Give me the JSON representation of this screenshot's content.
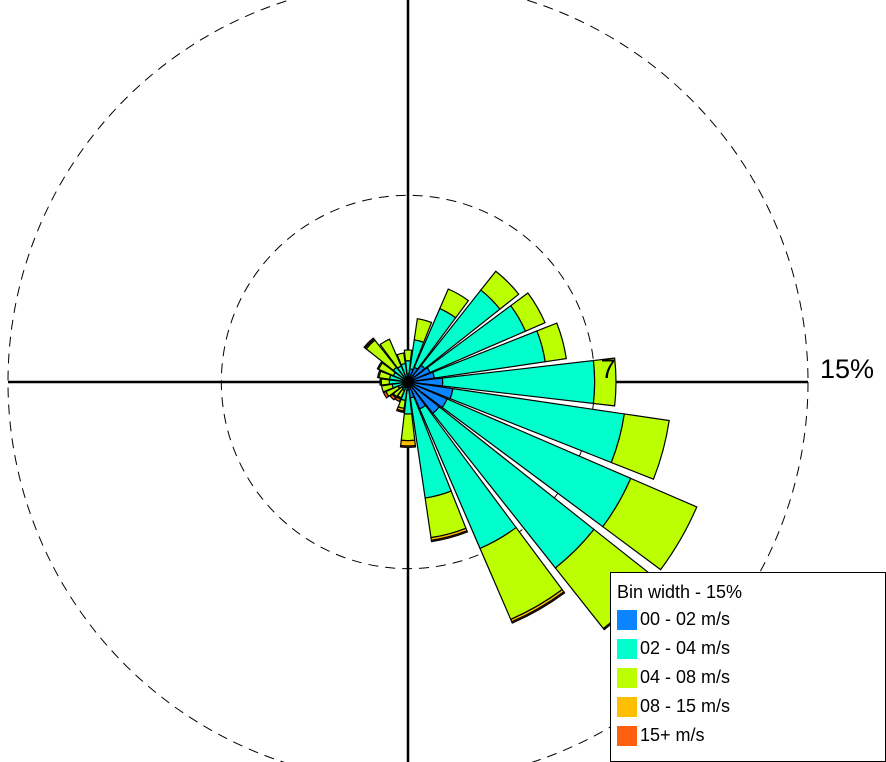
{
  "chart_data": {
    "type": "windrose",
    "ring_labels": [
      "7",
      "15%"
    ],
    "ring_values": [
      7,
      15
    ],
    "legend": {
      "title": "Bin width - 15%",
      "entries": [
        {
          "label": "00 - 02 m/s",
          "color": "#0a84ff"
        },
        {
          "label": "02 - 04 m/s",
          "color": "#00ffcc"
        },
        {
          "label": "04 - 08 m/s",
          "color": "#bbff00"
        },
        {
          "label": "08 - 15 m/s",
          "color": "#ffbf00"
        },
        {
          "label": "15+ m/s",
          "color": "#ff6010"
        }
      ]
    },
    "directions_deg": [
      0,
      15,
      30,
      45,
      60,
      75,
      90,
      105,
      120,
      135,
      150,
      165,
      180,
      195,
      210,
      225,
      240,
      255,
      270,
      285,
      300,
      315,
      330,
      345
    ],
    "series": [
      {
        "name": "00 - 02 m/s",
        "values": [
          0.3,
          0.5,
          0.6,
          0.8,
          0.9,
          1.0,
          1.3,
          1.7,
          1.6,
          1.5,
          1.1,
          0.6,
          0.3,
          0.2,
          0.15,
          0.1,
          0.1,
          0.1,
          0.1,
          0.1,
          0.1,
          0.1,
          0.15,
          0.2
        ]
      },
      {
        "name": "02 - 04 m/s",
        "values": [
          0.5,
          1.1,
          2.4,
          3.6,
          3.9,
          4.2,
          5.7,
          6.5,
          7.5,
          7.4,
          5.7,
          3.8,
          0.9,
          0.5,
          0.2,
          0.2,
          0.3,
          0.5,
          0.6,
          0.6,
          0.5,
          0.6,
          0.5,
          0.5
        ]
      },
      {
        "name": "04 - 08 m/s",
        "values": [
          0.4,
          0.8,
          0.8,
          0.9,
          0.8,
          0.8,
          0.8,
          1.7,
          2.7,
          2.9,
          2.9,
          1.5,
          1.0,
          0.3,
          0.3,
          0.4,
          0.5,
          0.4,
          0.3,
          0.4,
          0.6,
          1.3,
          1.1,
          0.4
        ]
      },
      {
        "name": "08 - 15 m/s",
        "values": [
          0,
          0,
          0,
          0,
          0,
          0,
          0,
          0,
          0,
          0.05,
          0.1,
          0.1,
          0.2,
          0.1,
          0.05,
          0.05,
          0,
          0,
          0.05,
          0.05,
          0.05,
          0.05,
          0,
          0
        ]
      },
      {
        "name": "15+ m/s",
        "values": [
          0,
          0,
          0,
          0,
          0,
          0,
          0,
          0,
          0,
          0,
          0.05,
          0.05,
          0.05,
          0.05,
          0.1,
          0.1,
          0.1,
          0,
          0,
          0,
          0,
          0.05,
          0,
          0
        ]
      }
    ]
  }
}
